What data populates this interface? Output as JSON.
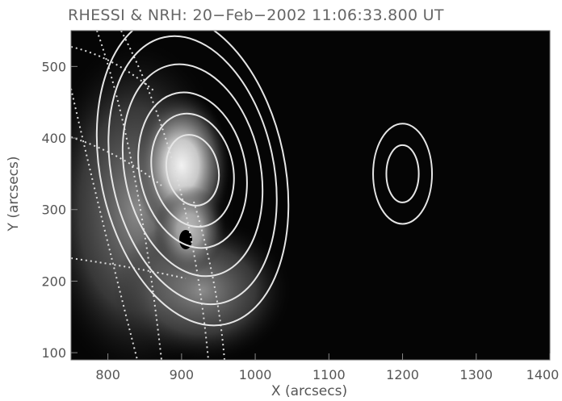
{
  "title": "RHESSI & NRH:   20−Feb−2002 11:06:33.800 UT",
  "chart_data": {
    "type": "image",
    "xlabel": "X (arcsecs)",
    "ylabel": "Y (arcsecs)",
    "xlim": [
      750,
      1400
    ],
    "ylim": [
      90,
      550
    ],
    "x_ticks": [
      "800",
      "900",
      "1000",
      "1100",
      "1200",
      "1300",
      "1400"
    ],
    "y_ticks": [
      "100",
      "200",
      "300",
      "400",
      "500"
    ],
    "contour_groups": [
      {
        "center": [
          915,
          355
        ],
        "semi_axes": [
          [
            35,
            50
          ],
          [
            55,
            80
          ],
          [
            72,
            110
          ],
          [
            92,
            150
          ],
          [
            110,
            190
          ],
          [
            125,
            220
          ]
        ]
      },
      {
        "center": [
          1200,
          350
        ],
        "semi_axes": [
          [
            22,
            40
          ],
          [
            40,
            70
          ]
        ]
      }
    ]
  }
}
